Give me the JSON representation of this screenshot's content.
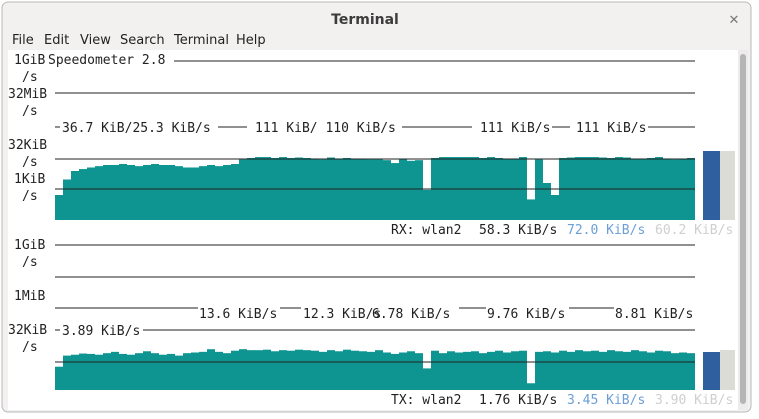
{
  "window": {
    "title": "Terminal"
  },
  "menu": [
    "File",
    "Edit",
    "View",
    "Search",
    "Terminal",
    "Help"
  ],
  "app_title": "Speedometer 2.8",
  "rx": {
    "axis_labels": [
      "1GiB",
      "/s",
      "32MiB",
      "/s",
      "32KiB",
      "/s",
      "1KiB",
      "/s"
    ],
    "rate_labels": [
      "36.7 KiB/25.3 KiB/s",
      "111 KiB/ 110 KiB/s",
      "111 KiB/s",
      "111 KiB/s"
    ],
    "history": [
      0.5,
      3,
      8,
      10,
      12,
      14,
      16,
      16,
      18,
      16,
      14,
      16,
      18,
      16,
      16,
      14,
      12,
      12,
      14,
      16,
      14,
      16,
      18,
      30,
      36,
      40,
      40,
      36,
      40,
      36,
      38,
      36,
      34,
      30,
      38,
      34,
      36,
      34,
      32,
      30,
      30,
      28,
      20,
      32,
      26,
      28,
      0.9,
      36,
      40,
      40,
      40,
      40,
      40,
      36,
      40,
      36,
      32,
      34,
      40,
      0.3,
      30,
      2,
      0.5,
      36,
      38,
      40,
      40,
      40,
      38,
      36,
      40,
      38,
      32,
      34,
      36,
      40,
      34,
      30,
      32,
      36
    ],
    "status": "RX: wlan2",
    "current": "58.3 KiB/s",
    "average": "72.0 KiB/s",
    "peak": "60.2 KiB/s"
  },
  "tx": {
    "axis_labels": [
      "1GiB",
      "/s",
      "1MiB",
      "32KiB",
      "/s"
    ],
    "rate_labels": [
      "13.6 KiB/s",
      "12.3 KiB/s",
      "6.78 KiB/s",
      "9.76 KiB/s",
      "8.81 KiB/s",
      "3.89 KiB/s"
    ],
    "history": [
      0.6,
      2,
      2.2,
      2.5,
      2.4,
      2.2,
      2.6,
      3,
      2.4,
      2.2,
      2.6,
      3.2,
      2.6,
      2.2,
      2.4,
      2,
      2.6,
      2.8,
      3,
      4,
      3,
      2.6,
      3.4,
      4,
      3.6,
      3.6,
      3.8,
      3.2,
      3.6,
      3.4,
      3.8,
      3.6,
      3.4,
      3,
      3.6,
      3.2,
      3.8,
      3.4,
      3.2,
      3,
      3.6,
      2.8,
      2.4,
      2.8,
      3.2,
      2.6,
      0.5,
      3.4,
      2.6,
      3.2,
      2.8,
      3,
      3.2,
      2.6,
      3,
      3.4,
      2.8,
      3.2,
      3.4,
      0.1,
      3,
      3.2,
      2.8,
      3.4,
      3,
      3.6,
      3.2,
      3.4,
      3,
      3.6,
      3.2,
      3,
      3.6,
      3.2,
      2.8,
      3.4,
      3.2,
      2.6,
      2.8,
      2.6
    ],
    "status": "TX: wlan2",
    "current": "1.76 KiB/s",
    "average": "3.45 KiB/s",
    "peak": "3.90 KiB/s"
  }
}
